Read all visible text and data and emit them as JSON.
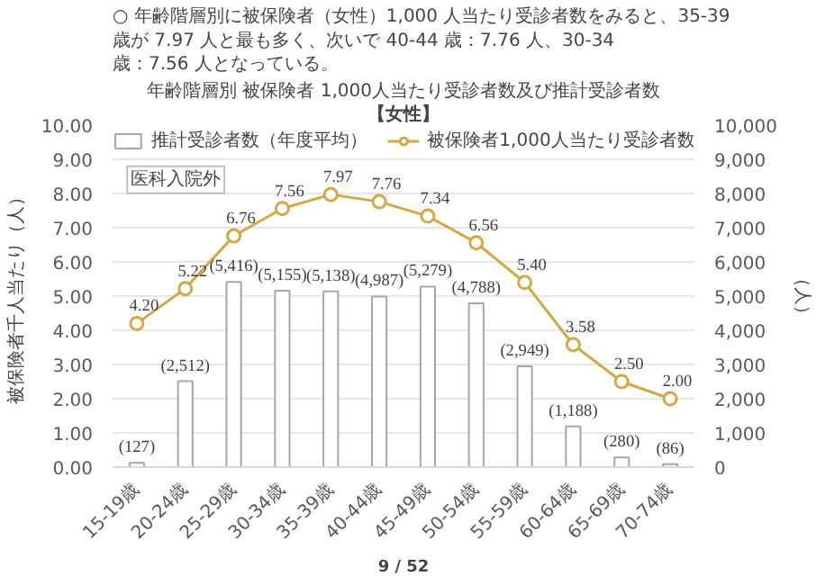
{
  "chart_data": {
    "type": "bar",
    "title": "年齢階層別 被保険者 1,000人当たり受診者数及び推計受診者数",
    "subtitle": "【女性】",
    "ylabel": "被保険者千人当たり（人）",
    "y2label": "（人）",
    "annotations": [
      "○ 年齢階層別に被保険者（女性）1,000 人当たり受診者数をみると、35-39 歳が 7.97 人と最も多く、次いで 40-44 歳：7.76 人、30-34 歳：7.56 人となっている。",
      "医科入院外",
      "9 / 52"
    ],
    "categories": [
      "15-19歳",
      "20-24歳",
      "25-29歳",
      "30-34歳",
      "35-39歳",
      "40-44歳",
      "45-49歳",
      "50-54歳",
      "55-59歳",
      "60-64歳",
      "65-69歳",
      "70-74歳"
    ],
    "series": [
      {
        "name": "推計受診者数（年度平均）",
        "type": "bar",
        "axis": "y2",
        "color": "#ffffff",
        "values": [
          127,
          2512,
          5416,
          5155,
          5138,
          4987,
          5279,
          4788,
          2949,
          1188,
          280,
          86
        ],
        "value_labels": [
          "(127)",
          "(2,512)",
          "(5,416)",
          "(5,155)",
          "(5,138)",
          "(4,987)",
          "(5,279)",
          "(4,788)",
          "(2,949)",
          "(1,188)",
          "(280)",
          "(86)"
        ]
      },
      {
        "name": "被保険者1,000人当たり受診者数",
        "type": "line",
        "color": "#d4a843",
        "values": [
          4.2,
          5.22,
          6.76,
          7.56,
          7.97,
          7.76,
          7.34,
          6.56,
          5.4,
          3.58,
          2.5,
          2.0
        ],
        "value_labels": [
          "4.20",
          "5.22",
          "6.76",
          "7.56",
          "7.97",
          "7.76",
          "7.34",
          "6.56",
          "5.40",
          "3.58",
          "2.50",
          "2.00"
        ]
      }
    ],
    "ylim": [
      0,
      10
    ],
    "yticks": [
      {
        "value": 0,
        "label": "0.00"
      },
      {
        "value": 1,
        "label": "1.00"
      },
      {
        "value": 2,
        "label": "2.00"
      },
      {
        "value": 3,
        "label": "3.00"
      },
      {
        "value": 4,
        "label": "4.00"
      },
      {
        "value": 5,
        "label": "5.00"
      },
      {
        "value": 6,
        "label": "6.00"
      },
      {
        "value": 7,
        "label": "7.00"
      },
      {
        "value": 8,
        "label": "8.00"
      },
      {
        "value": 9,
        "label": "9.00"
      },
      {
        "value": 10,
        "label": "10.00"
      }
    ],
    "y2lim": [
      0,
      10000
    ],
    "y2ticks": [
      0,
      {
        "value": 1000,
        "label": "1,000"
      },
      {
        "value": 2000,
        "label": "2,000"
      },
      {
        "value": 3000,
        "label": "3,000"
      },
      {
        "value": 4000,
        "label": "4,000"
      },
      {
        "value": 5000,
        "label": "5,000"
      },
      {
        "value": 6000,
        "label": "6,000"
      },
      {
        "value": 7000,
        "label": "7,000"
      },
      {
        "value": 8000,
        "label": "8,000"
      },
      {
        "value": 9000,
        "label": "9,000"
      },
      {
        "value": 10000,
        "label": "10,000"
      }
    ],
    "grid": "y",
    "legend": "top",
    "marker": "circle"
  }
}
